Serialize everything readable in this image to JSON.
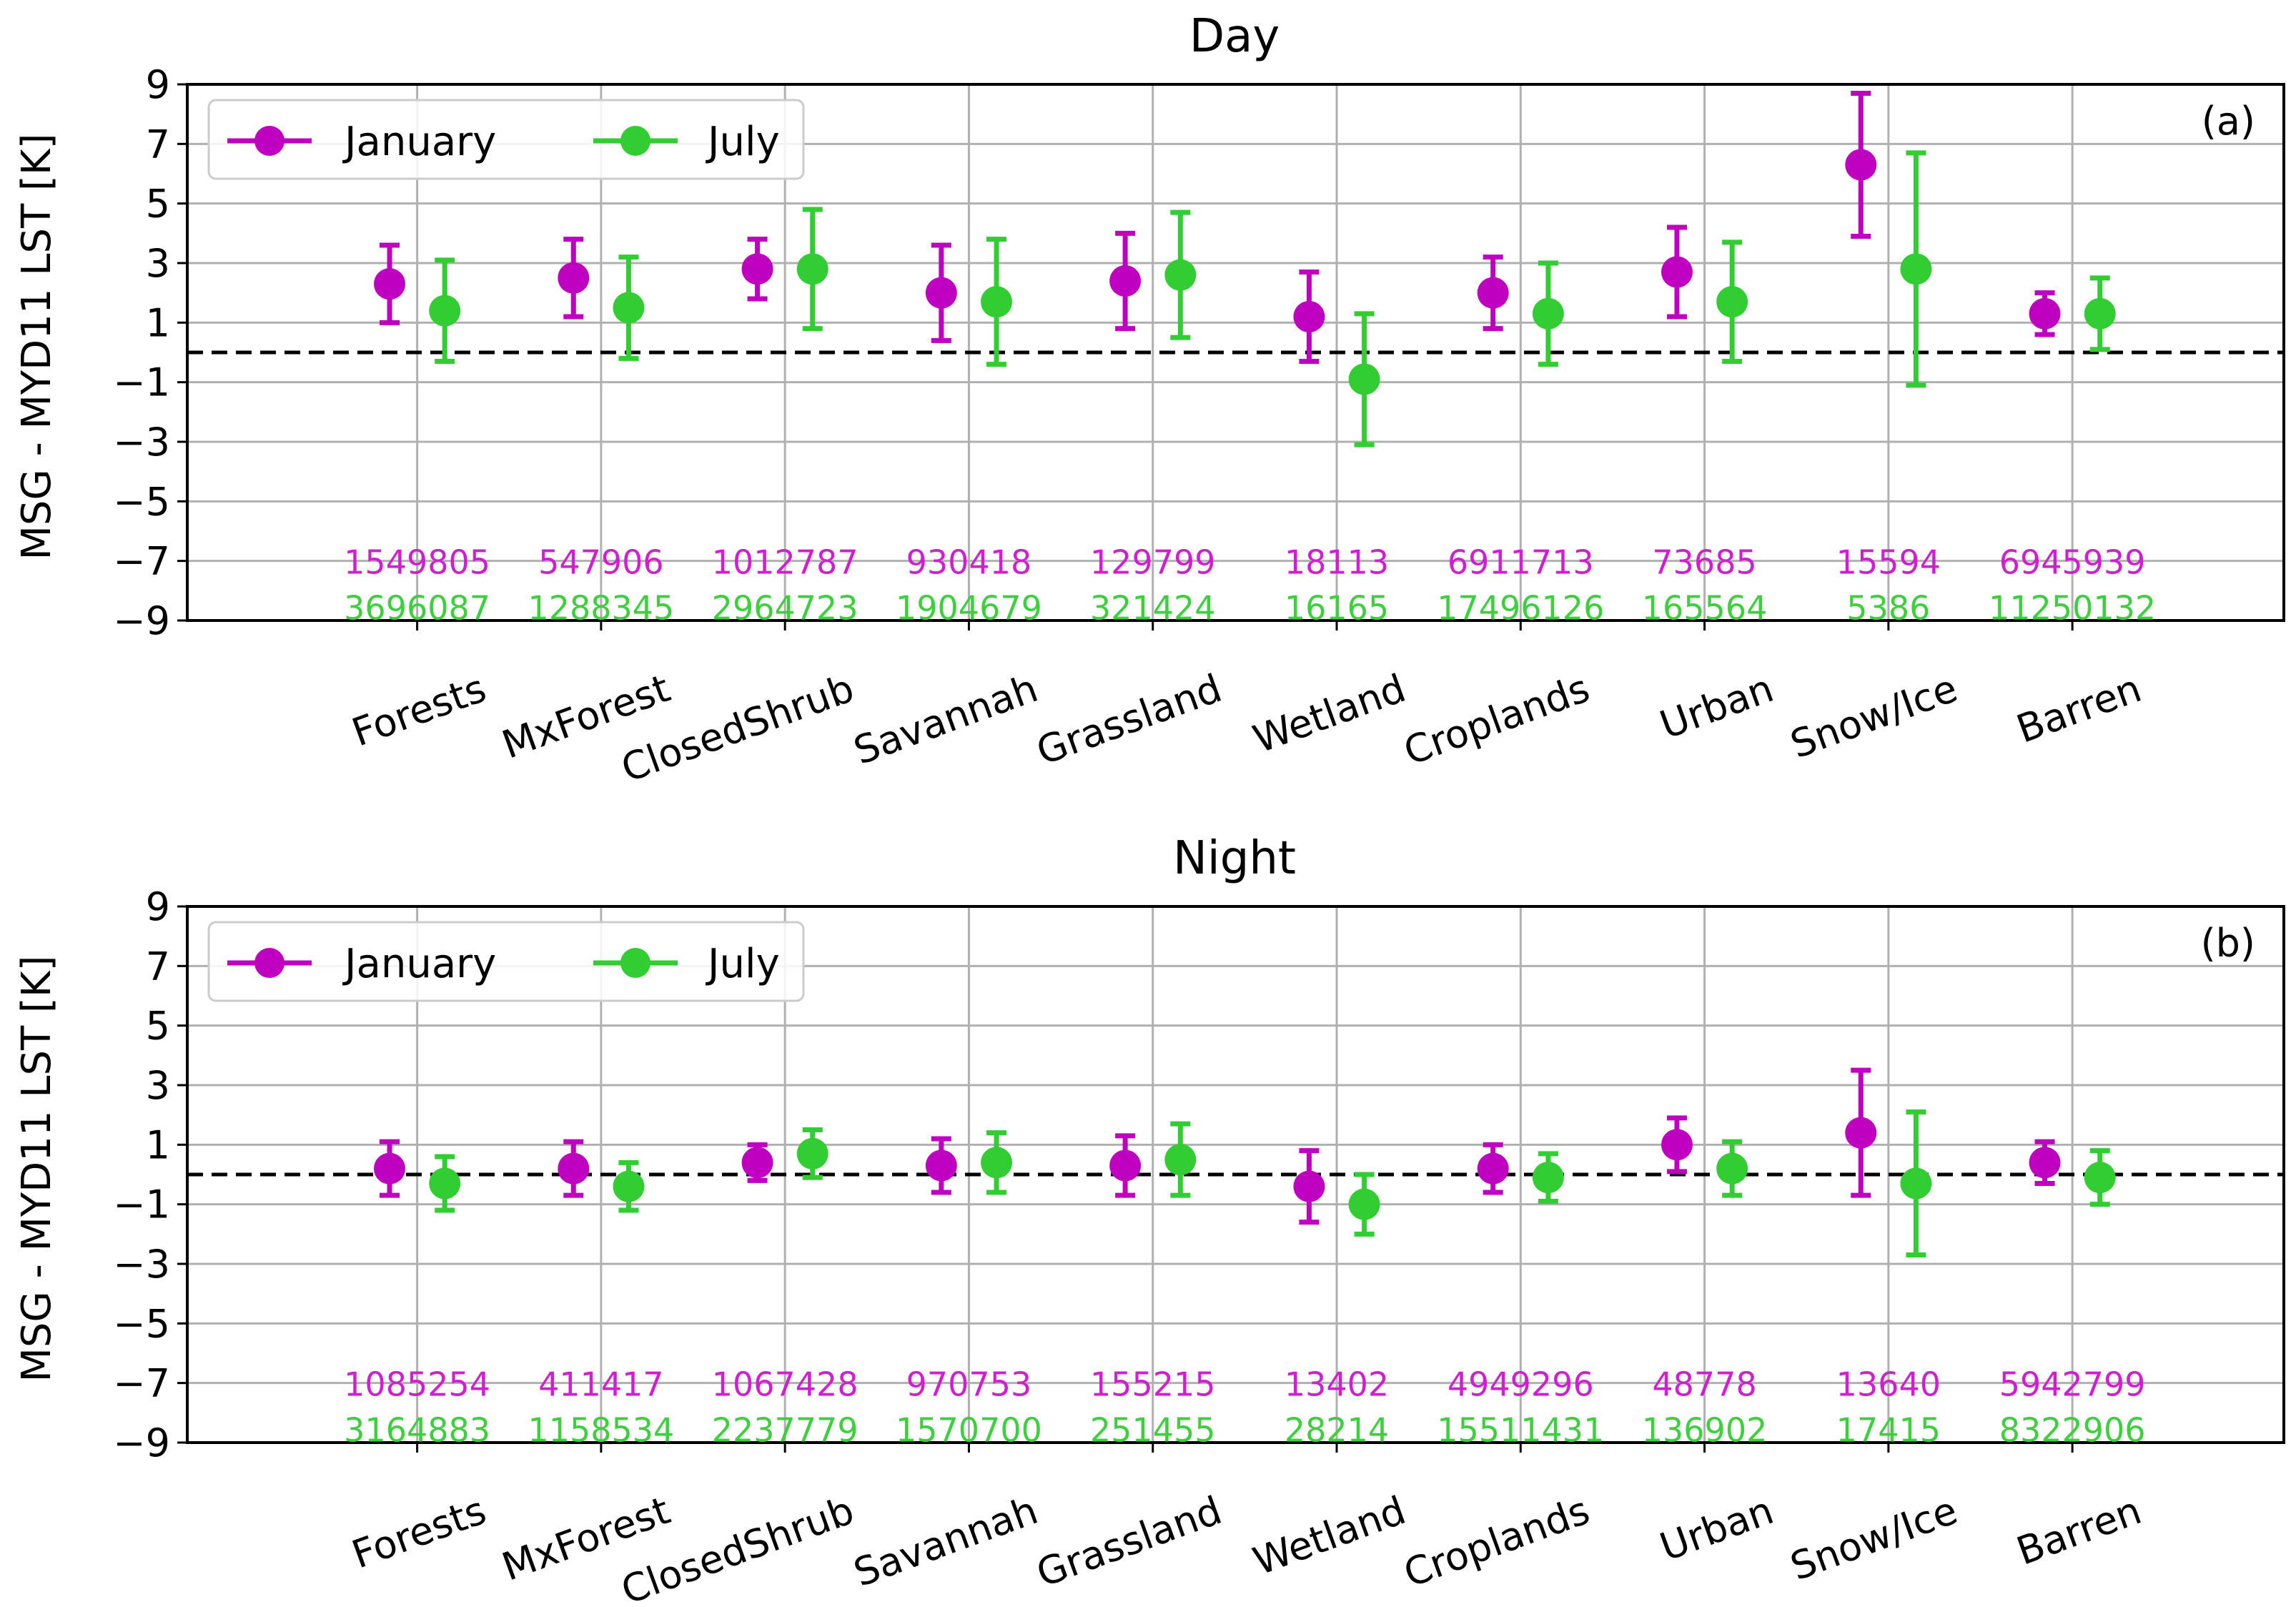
{
  "chart_data": [
    {
      "type": "errorbar",
      "panel_label": "(a)",
      "title": "Day",
      "ylabel": "MSG - MYD11 LST [K]",
      "xlabel": "",
      "ylim": [
        -9,
        9
      ],
      "yticks": [
        9,
        7,
        5,
        3,
        1,
        -1,
        -3,
        -5,
        -7,
        -9
      ],
      "ytick_labels": [
        "9",
        "7",
        "5",
        "3",
        "1",
        "−1",
        "−3",
        "−5",
        "−7",
        "−9"
      ],
      "grid": true,
      "legend_position": "top-left",
      "reference_line_y": 0,
      "categories": [
        "Forests",
        "MxForest",
        "ClosedShrub",
        "Savannah",
        "Grassland",
        "Wetland",
        "Croplands",
        "Urban",
        "Snow/Ice",
        "Barren"
      ],
      "series": [
        {
          "name": "January",
          "color": "#c000c0",
          "label_color": "#d21ed2",
          "means": [
            2.3,
            2.5,
            2.8,
            2.0,
            2.4,
            1.2,
            2.0,
            2.7,
            6.3,
            1.3
          ],
          "errors": [
            1.3,
            1.3,
            1.0,
            1.6,
            1.6,
            1.5,
            1.2,
            1.5,
            2.4,
            0.7
          ],
          "counts": [
            "1549805",
            "547906",
            "1012787",
            "930418",
            "129799",
            "18113",
            "6911713",
            "73685",
            "15594",
            "6945939"
          ]
        },
        {
          "name": "July",
          "color": "#32cd32",
          "label_color": "#3cd03c",
          "means": [
            1.4,
            1.5,
            2.8,
            1.7,
            2.6,
            -0.9,
            1.3,
            1.7,
            2.8,
            1.3
          ],
          "errors": [
            1.7,
            1.7,
            2.0,
            2.1,
            2.1,
            2.2,
            1.7,
            2.0,
            3.9,
            1.2
          ],
          "counts": [
            "3696087",
            "1288345",
            "2964723",
            "1904679",
            "321424",
            "16165",
            "17496126",
            "165564",
            "5386",
            "11250132"
          ]
        }
      ]
    },
    {
      "type": "errorbar",
      "panel_label": "(b)",
      "title": "Night",
      "ylabel": "MSG - MYD11 LST [K]",
      "xlabel": "",
      "ylim": [
        -9,
        9
      ],
      "yticks": [
        9,
        7,
        5,
        3,
        1,
        -1,
        -3,
        -5,
        -7,
        -9
      ],
      "ytick_labels": [
        "9",
        "7",
        "5",
        "3",
        "1",
        "−1",
        "−3",
        "−5",
        "−7",
        "−9"
      ],
      "grid": true,
      "legend_position": "top-left",
      "reference_line_y": 0,
      "categories": [
        "Forests",
        "MxForest",
        "ClosedShrub",
        "Savannah",
        "Grassland",
        "Wetland",
        "Croplands",
        "Urban",
        "Snow/Ice",
        "Barren"
      ],
      "series": [
        {
          "name": "January",
          "color": "#c000c0",
          "label_color": "#d21ed2",
          "means": [
            0.2,
            0.2,
            0.4,
            0.3,
            0.3,
            -0.4,
            0.2,
            1.0,
            1.4,
            0.4
          ],
          "errors": [
            0.9,
            0.9,
            0.6,
            0.9,
            1.0,
            1.2,
            0.8,
            0.9,
            2.1,
            0.7
          ],
          "counts": [
            "1085254",
            "411417",
            "1067428",
            "970753",
            "155215",
            "13402",
            "4949296",
            "48778",
            "13640",
            "5942799"
          ]
        },
        {
          "name": "July",
          "color": "#32cd32",
          "label_color": "#3cd03c",
          "means": [
            -0.3,
            -0.4,
            0.7,
            0.4,
            0.5,
            -1.0,
            -0.1,
            0.2,
            -0.3,
            -0.1
          ],
          "errors": [
            0.9,
            0.8,
            0.8,
            1.0,
            1.2,
            1.0,
            0.8,
            0.9,
            2.4,
            0.9
          ],
          "counts": [
            "3164883",
            "1158534",
            "2237779",
            "1570700",
            "251455",
            "28214",
            "15511431",
            "136902",
            "17415",
            "8322906"
          ]
        }
      ]
    }
  ]
}
